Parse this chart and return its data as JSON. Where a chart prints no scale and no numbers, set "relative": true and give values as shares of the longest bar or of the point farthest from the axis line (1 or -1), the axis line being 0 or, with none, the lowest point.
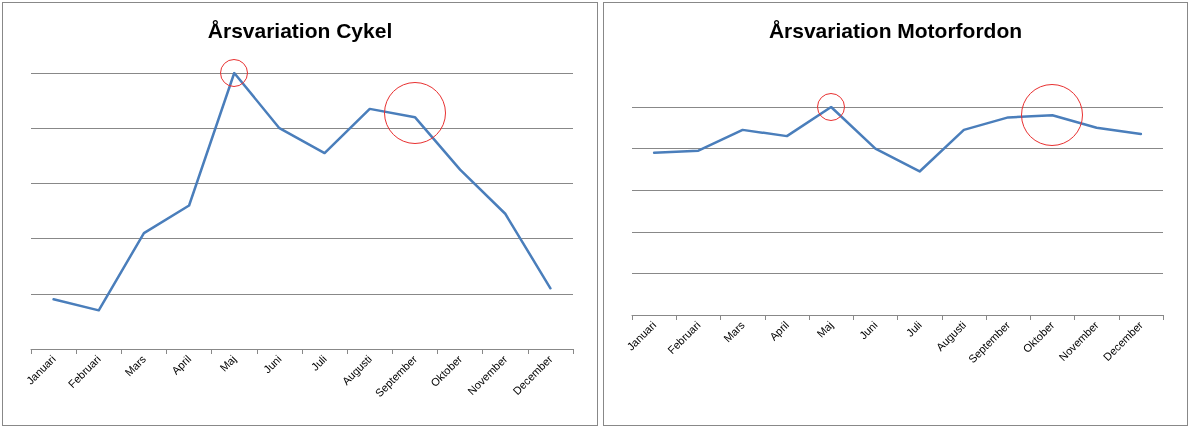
{
  "chart_data": [
    {
      "type": "line",
      "title": "Årsvariation Cykel",
      "relative": true,
      "grid": "y",
      "marker": "none",
      "line_style": "solid",
      "categories": [
        "Januari",
        "Februari",
        "Mars",
        "April",
        "Maj",
        "Juni",
        "Juli",
        "Augusti",
        "September",
        "Oktober",
        "November",
        "December"
      ],
      "series": [
        {
          "color": "#4a7ebb",
          "values": [
            0.18,
            0.14,
            0.42,
            0.52,
            1.0,
            0.8,
            0.71,
            0.87,
            0.84,
            0.65,
            0.49,
            0.22
          ]
        }
      ]
    },
    {
      "type": "line",
      "title": "Årsvariation Motorfordon",
      "relative": true,
      "grid": "y",
      "marker": "none",
      "line_style": "solid",
      "categories": [
        "Januari",
        "Februari",
        "Mars",
        "April",
        "Maj",
        "Juni",
        "Juli",
        "Augusti",
        "September",
        "Oktober",
        "November",
        "December"
      ],
      "series": [
        {
          "color": "#4a7ebb",
          "values": [
            0.78,
            0.79,
            0.89,
            0.86,
            1.0,
            0.8,
            0.69,
            0.89,
            0.95,
            0.96,
            0.9,
            0.87
          ]
        }
      ]
    }
  ]
}
